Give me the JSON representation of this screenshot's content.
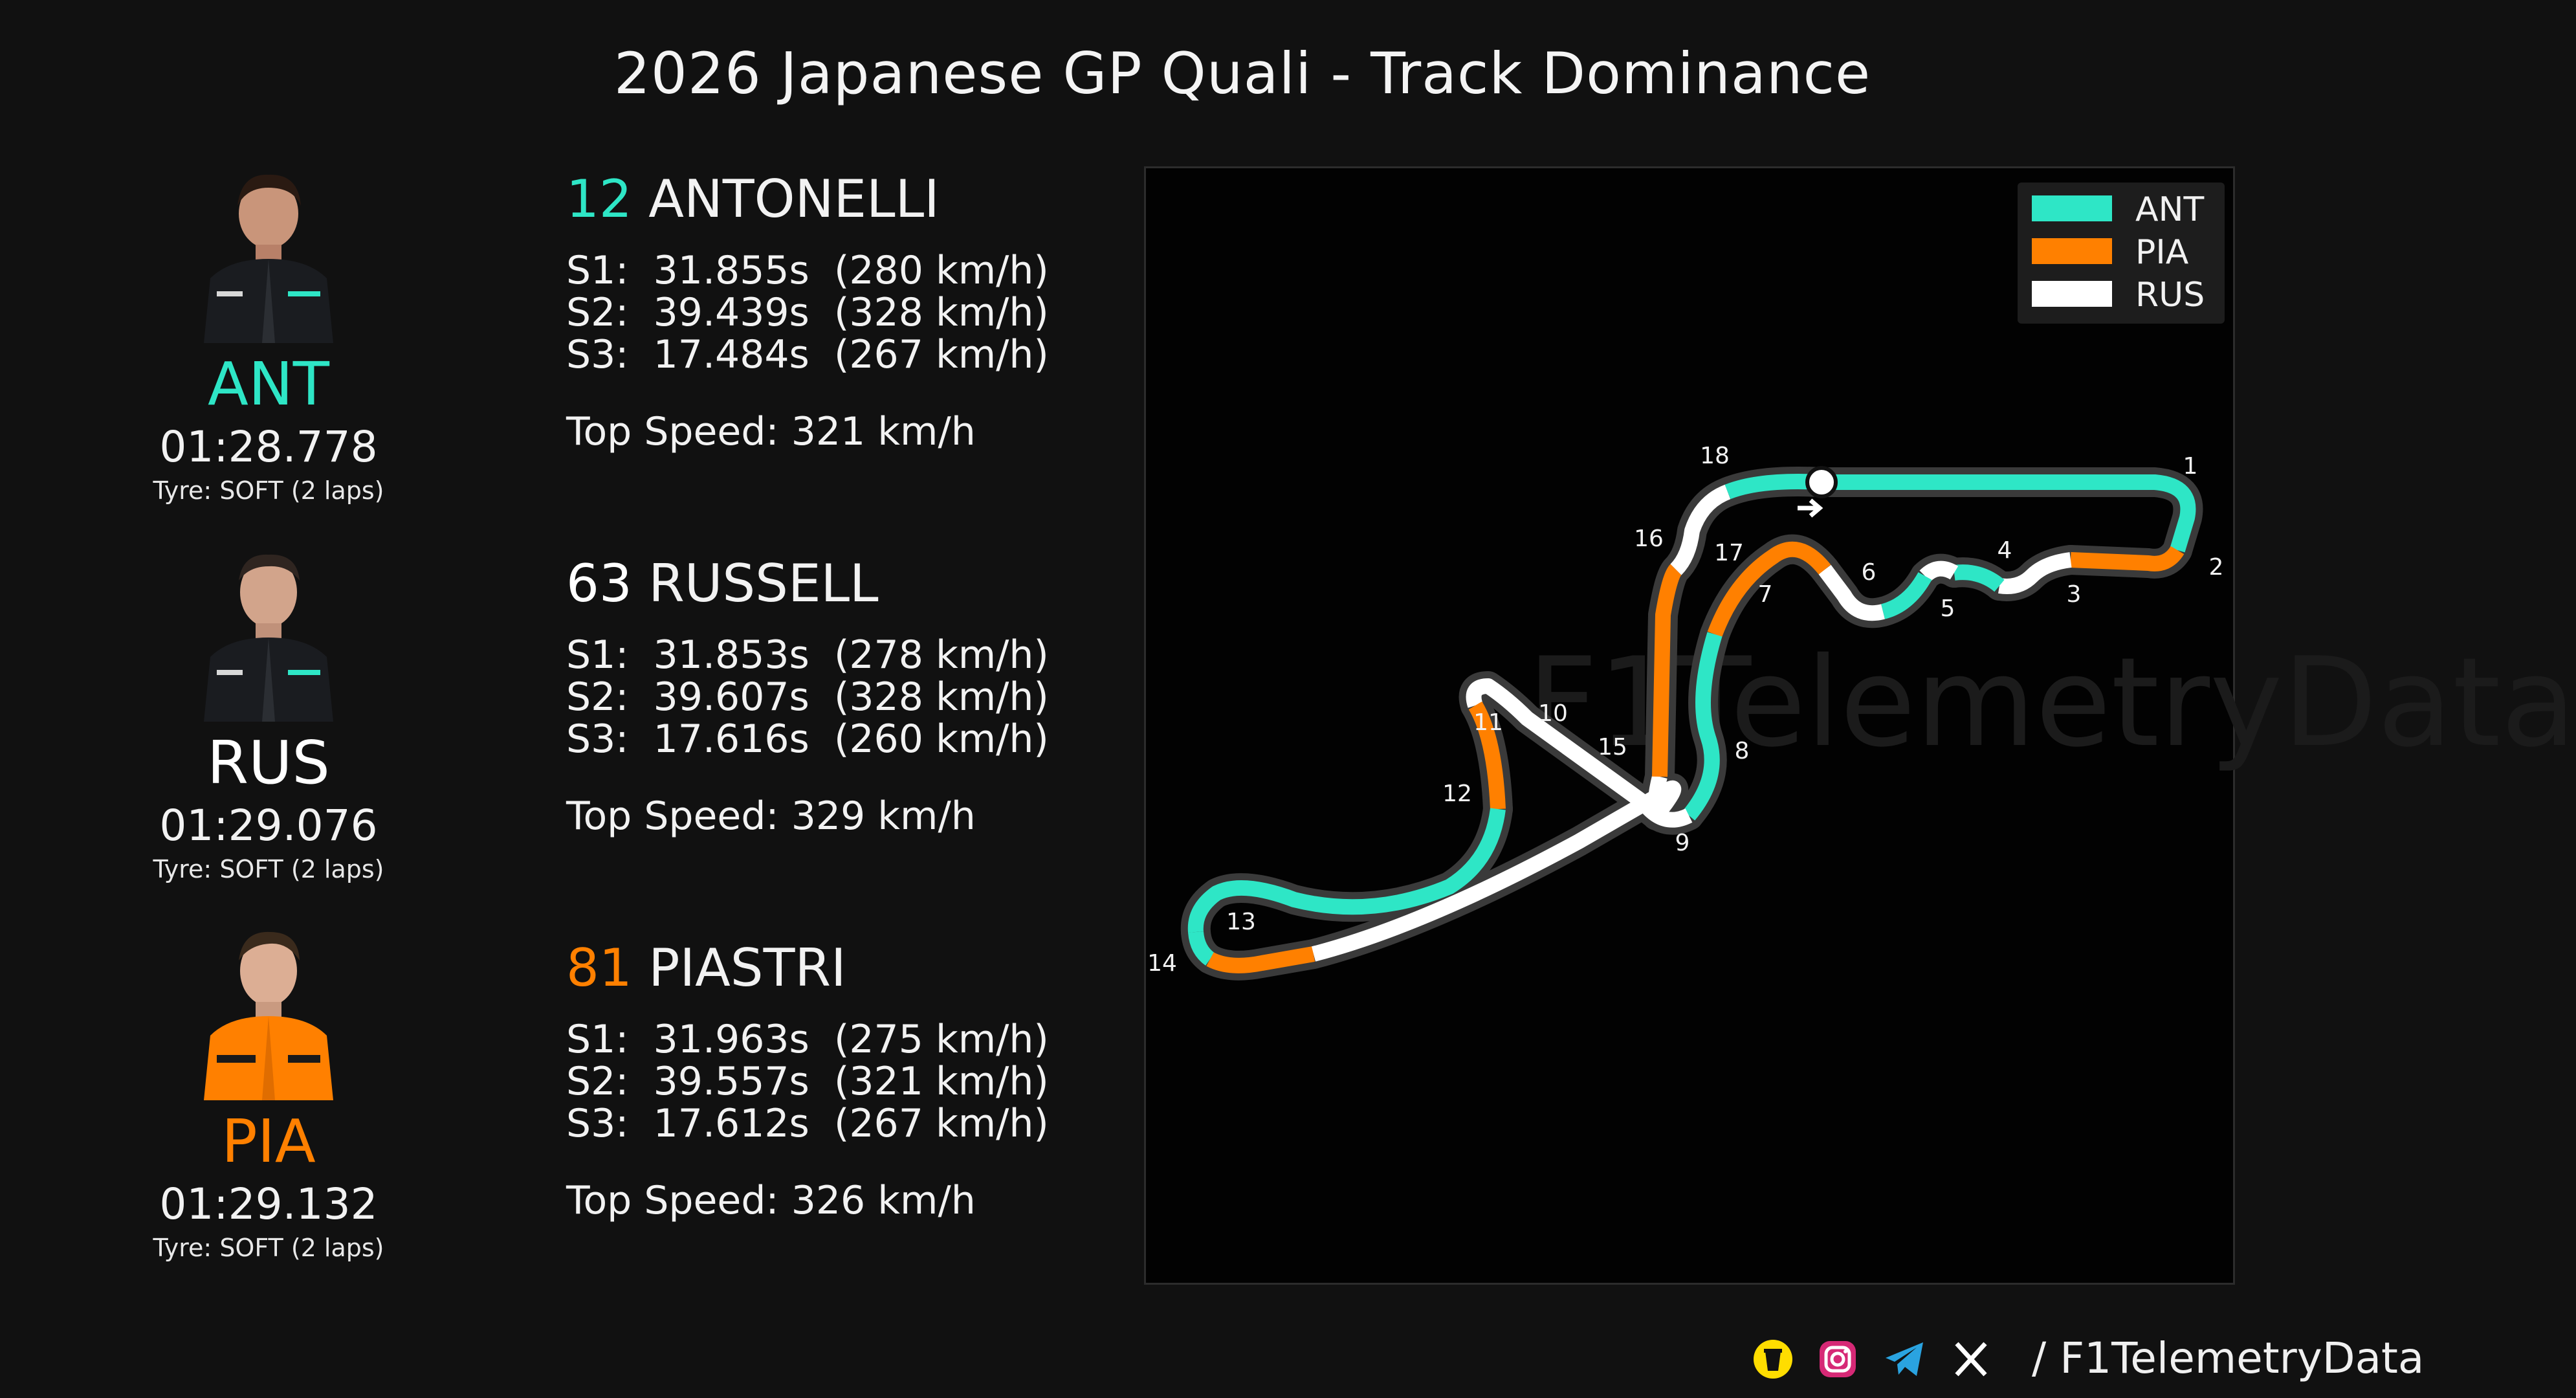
{
  "header": {
    "title": "2026 Japanese GP Quali - Track Dominance"
  },
  "colors": {
    "ANT": "#2ee6c6",
    "PIA": "#ff8000",
    "RUS": "#ffffff",
    "background": "#111111"
  },
  "drivers": [
    {
      "code": "ANT",
      "number": "12",
      "surname": "ANTONELLI",
      "lap_time": "01:28.778",
      "tyre": "Tyre: SOFT (2 laps)",
      "s1": "S1:  31.855s  (280 km/h)",
      "s2": "S2:  39.439s  (328 km/h)",
      "s3": "S3:  17.484s  (267 km/h)",
      "top_speed": "Top Speed: 321 km/h",
      "color": "#2ee6c6"
    },
    {
      "code": "RUS",
      "number": "63",
      "surname": "RUSSELL",
      "lap_time": "01:29.076",
      "tyre": "Tyre: SOFT (2 laps)",
      "s1": "S1:  31.853s  (278 km/h)",
      "s2": "S2:  39.607s  (328 km/h)",
      "s3": "S3:  17.616s  (260 km/h)",
      "top_speed": "Top Speed: 329 km/h",
      "color": "#ffffff"
    },
    {
      "code": "PIA",
      "number": "81",
      "surname": "PIASTRI",
      "lap_time": "01:29.132",
      "tyre": "Tyre: SOFT (2 laps)",
      "s1": "S1:  31.963s  (275 km/h)",
      "s2": "S2:  39.557s  (321 km/h)",
      "s3": "S3:  17.612s  (267 km/h)",
      "top_speed": "Top Speed: 326 km/h",
      "color": "#ff8000"
    }
  ],
  "legend": [
    {
      "label": "ANT",
      "color": "#2ee6c6"
    },
    {
      "label": "PIA",
      "color": "#ff8000"
    },
    {
      "label": "RUS",
      "color": "#ffffff"
    }
  ],
  "corners": [
    "1",
    "2",
    "3",
    "4",
    "5",
    "6",
    "7",
    "8",
    "9",
    "10",
    "11",
    "12",
    "13",
    "14",
    "15",
    "16",
    "17",
    "18"
  ],
  "watermark": "F1TelemetryData",
  "footer": {
    "handle": "/ F1TelemetryData",
    "icons": [
      "buymeacoffee-icon",
      "instagram-icon",
      "telegram-icon",
      "x-icon"
    ]
  }
}
